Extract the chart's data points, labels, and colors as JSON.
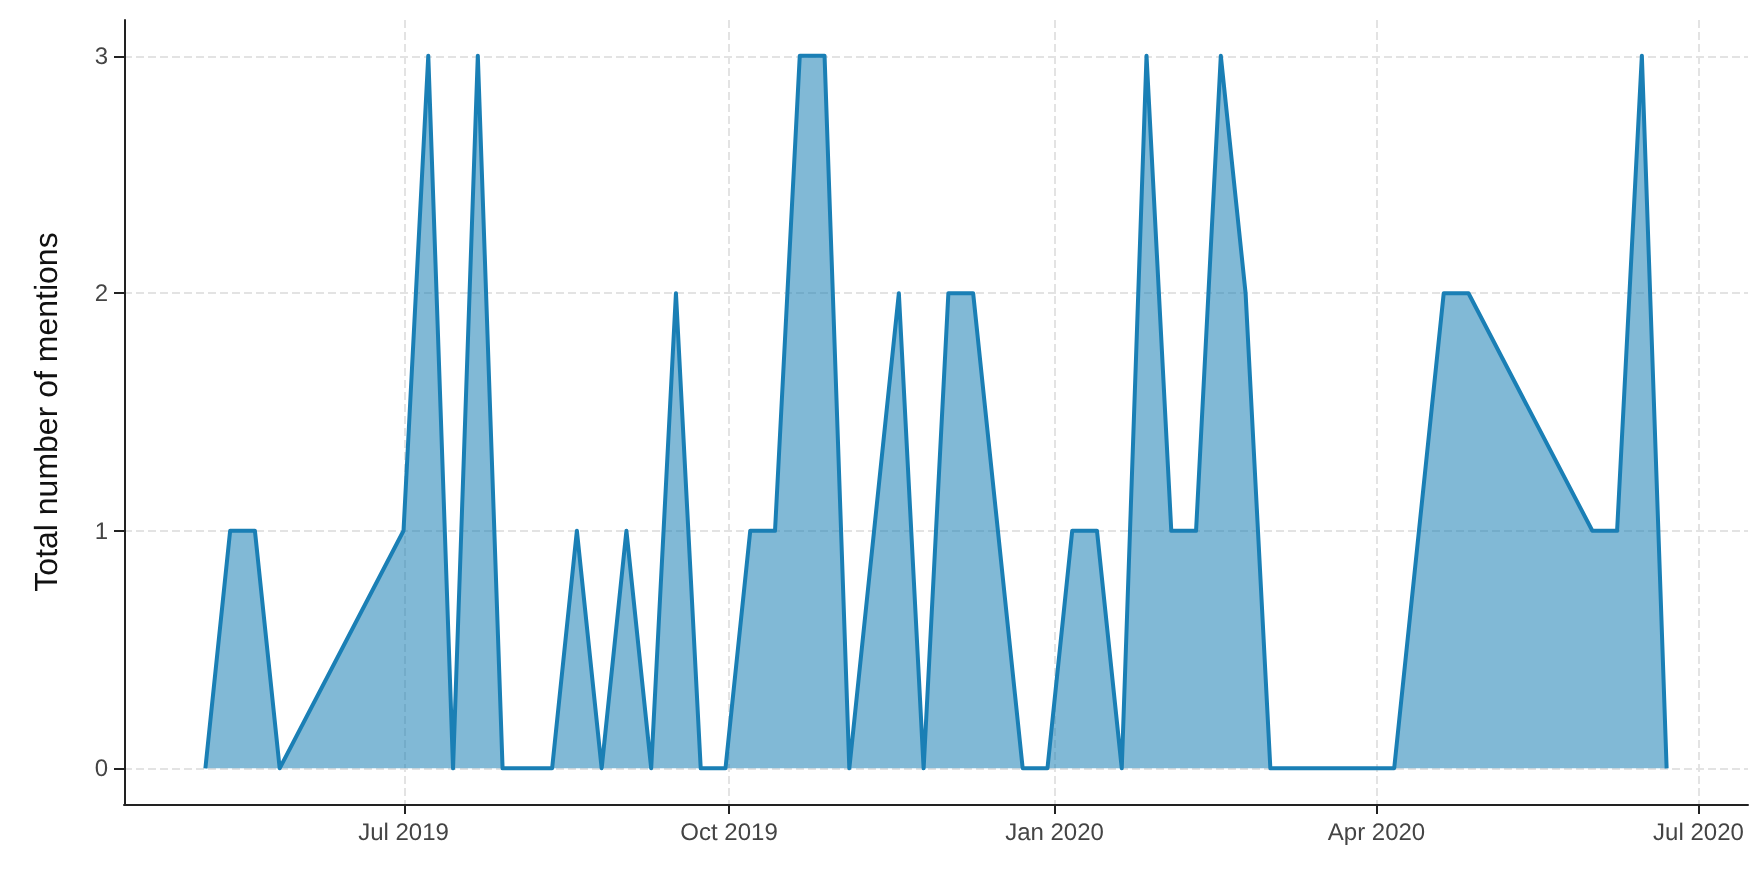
{
  "chart_data": {
    "type": "area",
    "ylabel": "Total number of mentions",
    "x": [
      "2019-05-06",
      "2019-05-13",
      "2019-05-20",
      "2019-05-27",
      "2019-07-01",
      "2019-07-08",
      "2019-07-15",
      "2019-07-22",
      "2019-07-29",
      "2019-08-12",
      "2019-08-19",
      "2019-08-26",
      "2019-09-02",
      "2019-09-09",
      "2019-09-16",
      "2019-09-23",
      "2019-09-30",
      "2019-10-07",
      "2019-10-14",
      "2019-10-21",
      "2019-10-28",
      "2019-11-04",
      "2019-11-18",
      "2019-11-25",
      "2019-12-02",
      "2019-12-09",
      "2019-12-23",
      "2019-12-30",
      "2020-01-06",
      "2020-01-13",
      "2020-01-20",
      "2020-01-27",
      "2020-02-03",
      "2020-02-10",
      "2020-02-17",
      "2020-02-24",
      "2020-03-02",
      "2020-04-06",
      "2020-04-20",
      "2020-04-27",
      "2020-06-01",
      "2020-06-08",
      "2020-06-15",
      "2020-06-22"
    ],
    "series": [
      {
        "color": "#1a7fb5",
        "values": [
          0,
          1,
          1,
          0,
          1,
          3,
          0,
          3,
          0,
          0,
          1,
          0,
          1,
          0,
          2,
          0,
          0,
          1,
          1,
          3,
          3,
          0,
          2,
          0,
          2,
          2,
          0,
          0,
          1,
          1,
          0,
          3,
          1,
          1,
          3,
          2,
          0,
          0,
          2,
          2,
          1,
          1,
          3,
          0
        ]
      }
    ],
    "xlim": [
      "2019-04-13",
      "2020-07-15"
    ],
    "xticks": [
      {
        "value": "2019-07-01",
        "label": "Jul 2019"
      },
      {
        "value": "2019-10-01",
        "label": "Oct 2019"
      },
      {
        "value": "2020-01-01",
        "label": "Jan 2020"
      },
      {
        "value": "2020-04-01",
        "label": "Apr 2020"
      },
      {
        "value": "2020-07-01",
        "label": "Jul 2020"
      }
    ],
    "ylim": [
      -0.15,
      3.15
    ],
    "yticks": [
      0,
      1,
      2,
      3
    ],
    "grid": true,
    "marker": "none",
    "line_style": "solid"
  }
}
